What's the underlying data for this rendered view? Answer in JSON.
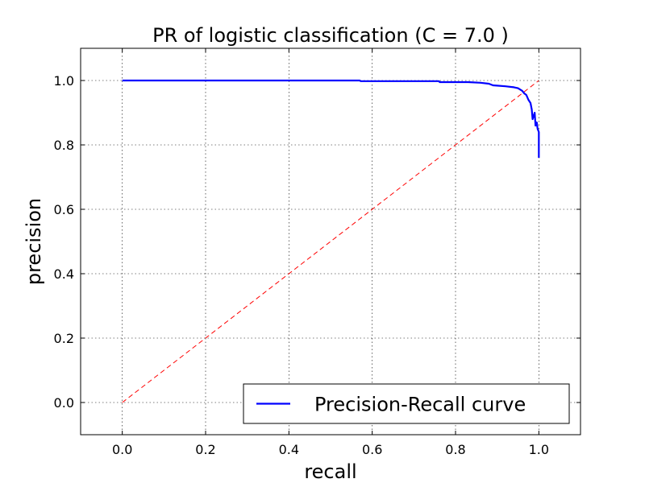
{
  "chart_data": {
    "type": "line",
    "title": "PR of logistic classification (C = 7.0 )",
    "xlabel": "recall",
    "ylabel": "precision",
    "xlim": [
      -0.1,
      1.1
    ],
    "ylim": [
      -0.1,
      1.1
    ],
    "xticks": [
      0.0,
      0.2,
      0.4,
      0.6,
      0.8,
      1.0
    ],
    "yticks": [
      0.0,
      0.2,
      0.4,
      0.6,
      0.8,
      1.0
    ],
    "xtick_labels": [
      "0.0",
      "0.2",
      "0.4",
      "0.6",
      "0.8",
      "1.0"
    ],
    "ytick_labels": [
      "0.0",
      "0.2",
      "0.4",
      "0.6",
      "0.8",
      "1.0"
    ],
    "grid": true,
    "legend_position": "bottom-right",
    "series": [
      {
        "name": "Precision-Recall curve",
        "color": "#0000ff",
        "style": "solid",
        "x": [
          0.0,
          0.57,
          0.572,
          0.76,
          0.762,
          0.83,
          0.86,
          0.88,
          0.89,
          0.9,
          0.92,
          0.94,
          0.95,
          0.96,
          0.965,
          0.97,
          0.975,
          0.98,
          0.983,
          0.985,
          0.99,
          0.992,
          0.995,
          0.997,
          1.0,
          1.0
        ],
        "y": [
          1.0,
          1.0,
          0.998,
          0.998,
          0.995,
          0.995,
          0.993,
          0.99,
          0.985,
          0.984,
          0.982,
          0.979,
          0.976,
          0.968,
          0.96,
          0.955,
          0.94,
          0.93,
          0.91,
          0.88,
          0.9,
          0.86,
          0.87,
          0.85,
          0.84,
          0.76
        ]
      },
      {
        "name": "",
        "color": "#ff0000",
        "style": "dashed",
        "x": [
          0.0,
          1.0
        ],
        "y": [
          0.0,
          1.0
        ]
      }
    ],
    "legend": [
      {
        "label": "Precision-Recall curve",
        "color": "#0000ff"
      }
    ]
  }
}
